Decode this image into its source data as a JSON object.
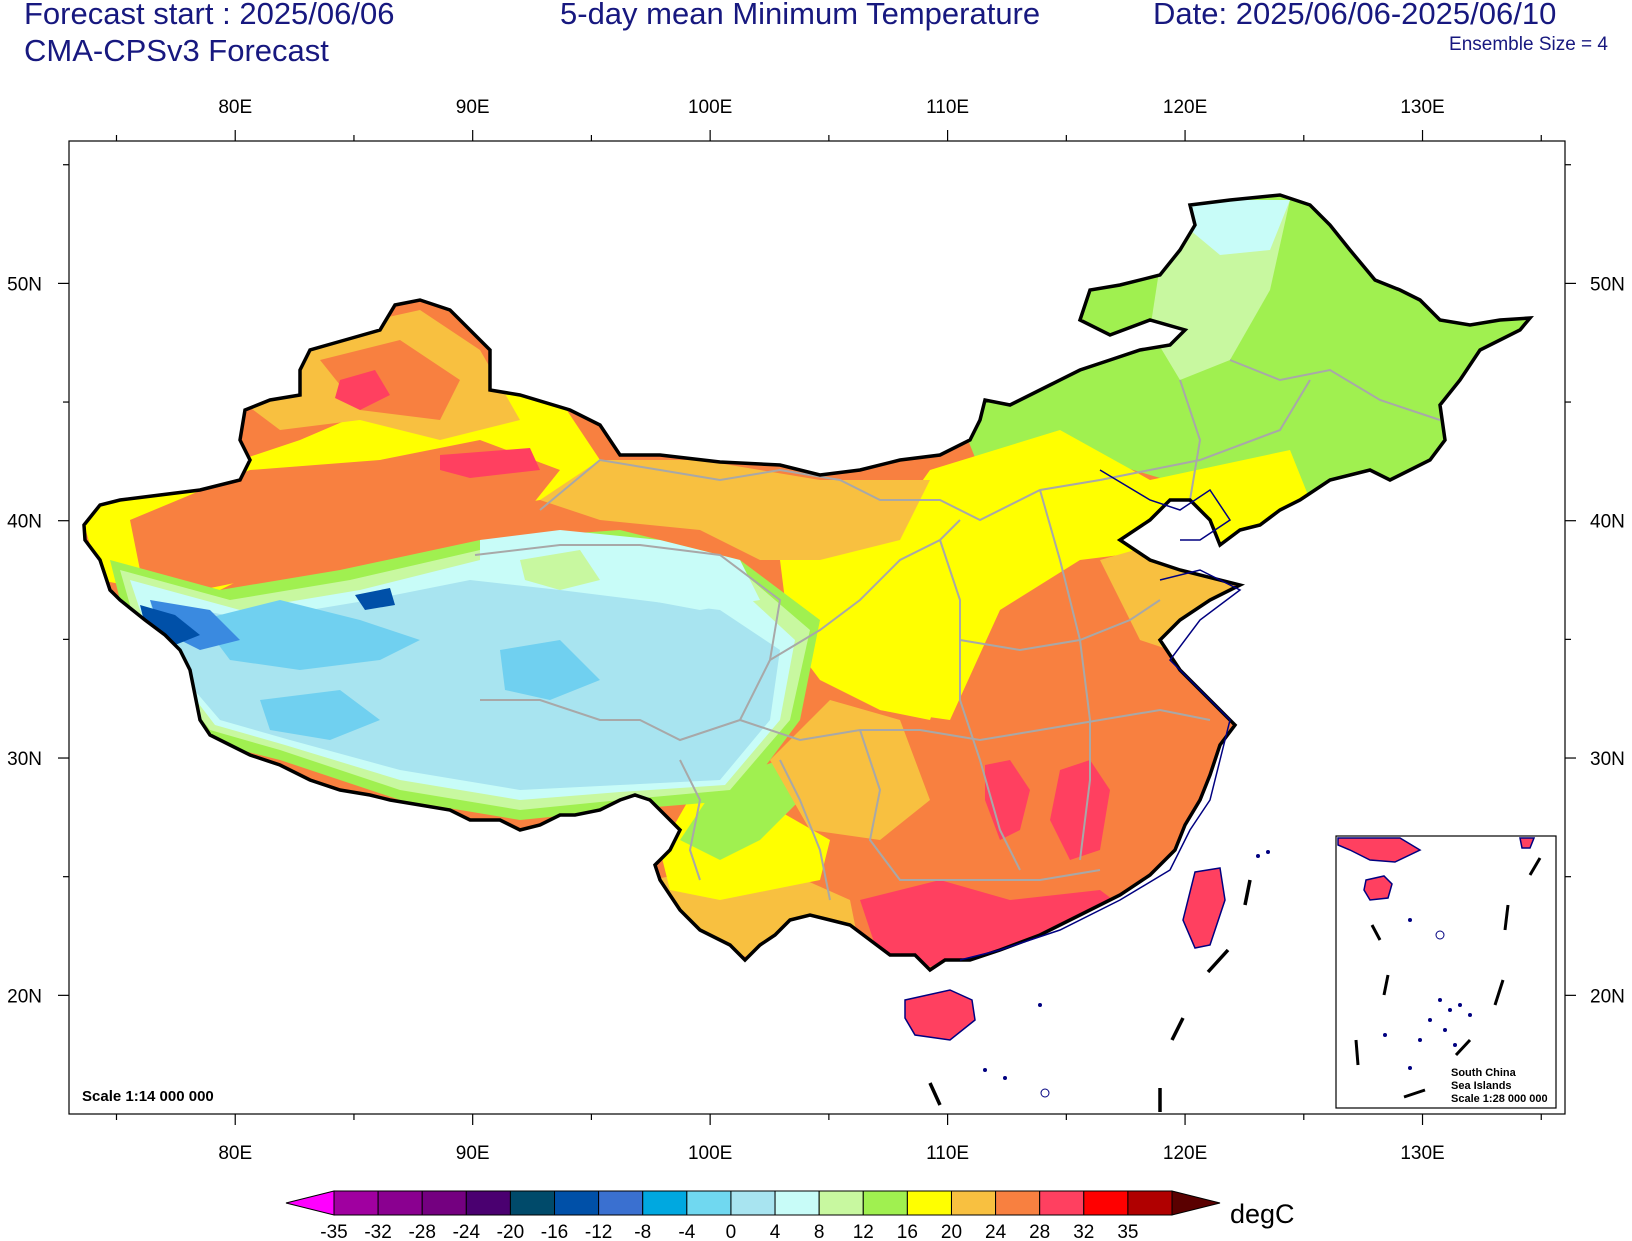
{
  "header": {
    "forecast_start": "Forecast start : 2025/06/06",
    "title": "5-day mean Minimum Temperature",
    "date_range": "Date: 2025/06/06-2025/06/10",
    "model": "CMA-CPSv3 Forecast",
    "ensemble": "Ensemble Size = 4"
  },
  "map": {
    "scale_text": "Scale 1:14 000 000",
    "lon_ticks": [
      {
        "value": 80,
        "label": "80E"
      },
      {
        "value": 90,
        "label": "90E"
      },
      {
        "value": 100,
        "label": "100E"
      },
      {
        "value": 110,
        "label": "110E"
      },
      {
        "value": 120,
        "label": "120E"
      },
      {
        "value": 130,
        "label": "130E"
      }
    ],
    "lat_ticks": [
      {
        "value": 50,
        "label": "50N"
      },
      {
        "value": 40,
        "label": "40N"
      },
      {
        "value": 30,
        "label": "30N"
      },
      {
        "value": 20,
        "label": "20N"
      }
    ],
    "lon_range": [
      73,
      136
    ],
    "lat_range": [
      15,
      56
    ],
    "inset": {
      "line1": "South China",
      "line2": "Sea Islands",
      "line3": "Scale 1:28 000 000"
    }
  },
  "colorbar": {
    "unit": "degC",
    "labels": [
      "-35",
      "-32",
      "-28",
      "-24",
      "-20",
      "-16",
      "-12",
      "-8",
      "-4",
      "0",
      "4",
      "8",
      "12",
      "16",
      "20",
      "24",
      "28",
      "32",
      "35"
    ],
    "left_arrow_color": "#ff00ff",
    "right_arrow_color": "#5a0000",
    "colors": [
      "#a000a0",
      "#8a0090",
      "#740080",
      "#4a0070",
      "#004a6a",
      "#0050a8",
      "#3a70d0",
      "#00a8e0",
      "#70d8f0",
      "#a8e4f0",
      "#c8fcf8",
      "#c8f8a0",
      "#a0f050",
      "#ffff00",
      "#f8c040",
      "#f88040",
      "#ff4060",
      "#ff0000",
      "#b00000"
    ]
  },
  "palette": {
    "cold_blue": "#0050a8",
    "mid_blue": "#3a8ae0",
    "light_blue": "#70d0f0",
    "pale_blue": "#a8e4f0",
    "pale_cyan": "#c8fcf8",
    "pale_green": "#c8f8a0",
    "green": "#a0f050",
    "yellow": "#ffff00",
    "light_orange": "#f8c040",
    "orange": "#f88040",
    "pink": "#ff4060",
    "border": "#000000",
    "province": "#a8a8a8",
    "coast": "#000080",
    "text": "#17187f"
  }
}
